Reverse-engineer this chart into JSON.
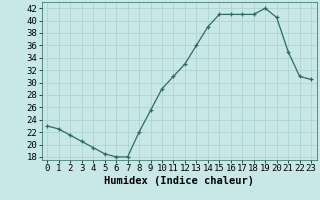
{
  "x": [
    0,
    1,
    2,
    3,
    4,
    5,
    6,
    7,
    8,
    9,
    10,
    11,
    12,
    13,
    14,
    15,
    16,
    17,
    18,
    19,
    20,
    21,
    22,
    23
  ],
  "y": [
    23,
    22.5,
    21.5,
    20.5,
    19.5,
    18.5,
    18,
    18,
    22,
    25.5,
    29,
    31,
    33,
    36,
    39,
    41,
    41,
    41,
    41,
    42,
    40.5,
    35,
    31,
    30.5
  ],
  "line_color": "#2e6b5e",
  "marker": "+",
  "marker_color": "#2e6b5e",
  "bg_color": "#c8e8e8",
  "grid_color": "#b0d4d4",
  "xlabel": "Humidex (Indice chaleur)",
  "xlim": [
    -0.5,
    23.5
  ],
  "ylim": [
    17.5,
    43
  ],
  "yticks": [
    18,
    20,
    22,
    24,
    26,
    28,
    30,
    32,
    34,
    36,
    38,
    40,
    42
  ],
  "xticks": [
    0,
    1,
    2,
    3,
    4,
    5,
    6,
    7,
    8,
    9,
    10,
    11,
    12,
    13,
    14,
    15,
    16,
    17,
    18,
    19,
    20,
    21,
    22,
    23
  ],
  "tick_label_fontsize": 6.5,
  "xlabel_fontsize": 7.5,
  "xlabel_fontweight": "bold",
  "linewidth": 0.9,
  "markersize": 3.5
}
